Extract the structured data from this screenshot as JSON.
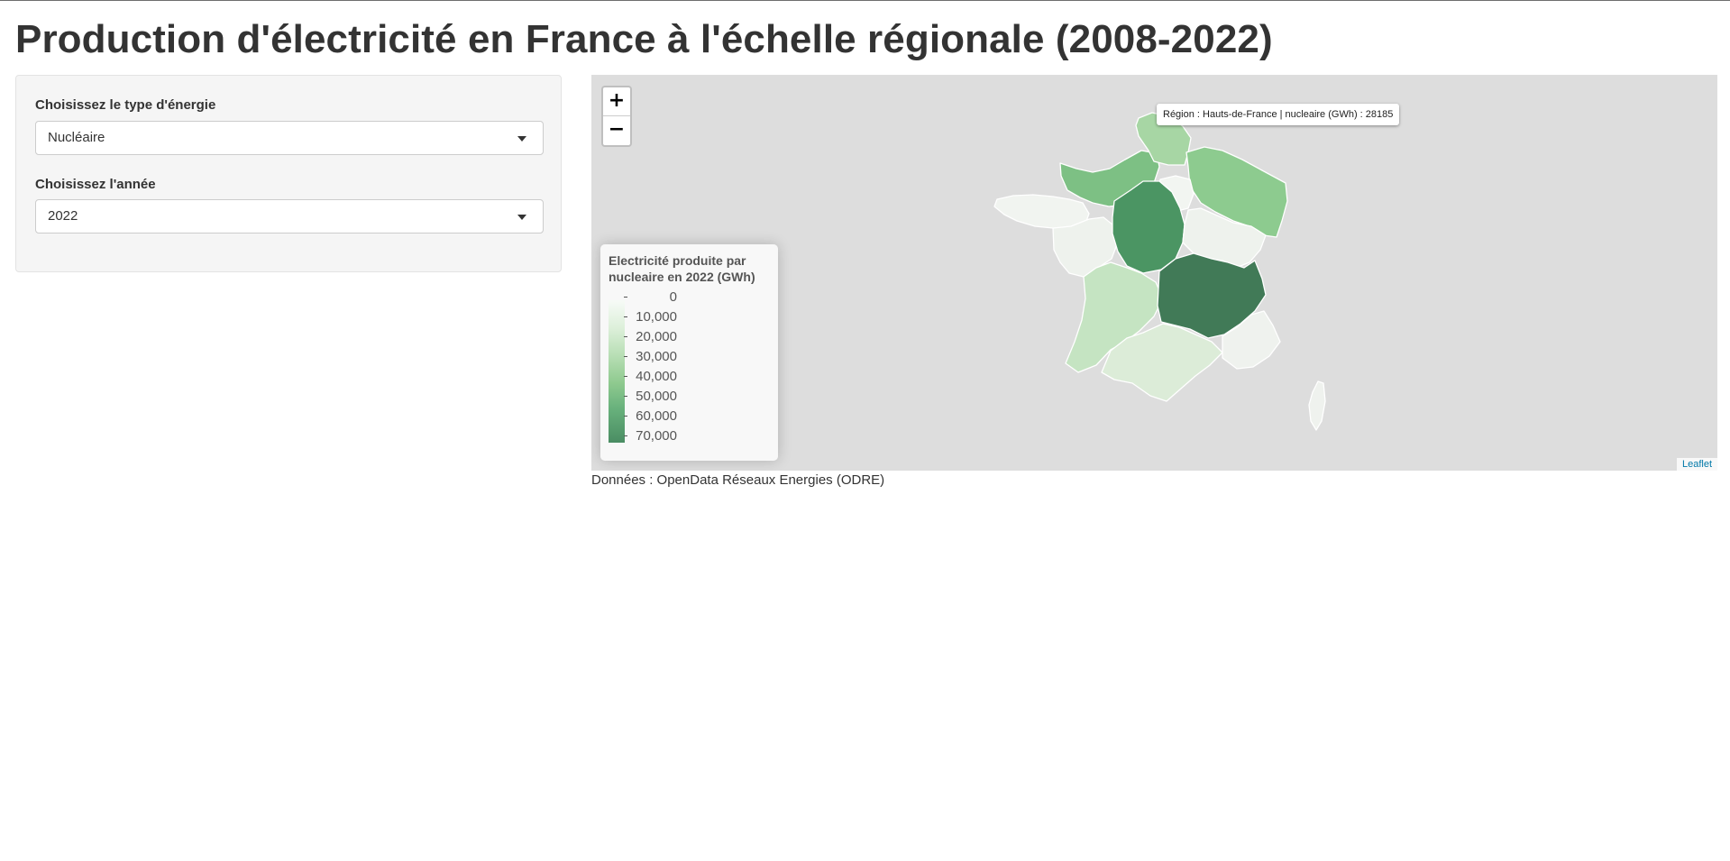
{
  "page": {
    "title": "Production d'électricité en France à l'échelle régionale (2008-2022)"
  },
  "sidebar": {
    "energy_label": "Choisissez le type d'énergie",
    "energy_value": "Nucléaire",
    "year_label": "Choisissez l'année",
    "year_value": "2022"
  },
  "map": {
    "zoom_in": "+",
    "zoom_out": "−",
    "tooltip": "Région : Hauts-de-France | nucleaire (GWh) : 28185",
    "attribution": "Leaflet",
    "legend": {
      "title": "Electricité produite par nucleaire en 2022 (GWh)",
      "labels": [
        "0",
        "10,000",
        "20,000",
        "30,000",
        "40,000",
        "50,000",
        "60,000",
        "70,000"
      ],
      "colors": {
        "low": "#f7fbf7",
        "high": "#3f7555"
      }
    },
    "regions": [
      {
        "name": "Bretagne",
        "color": "#f1f4f0"
      },
      {
        "name": "Normandie",
        "color": "#7dc084"
      },
      {
        "name": "Hauts-de-France",
        "color": "#a7d6a4"
      },
      {
        "name": "Grand Est",
        "color": "#8dcb8f"
      },
      {
        "name": "Île-de-France",
        "color": "#f2f5f1"
      },
      {
        "name": "Pays de la Loire",
        "color": "#eef2ed"
      },
      {
        "name": "Centre-Val de Loire",
        "color": "#4b9563"
      },
      {
        "name": "Bourgogne-Franche-Comté",
        "color": "#eef2ed"
      },
      {
        "name": "Nouvelle-Aquitaine",
        "color": "#c5e4c2"
      },
      {
        "name": "Auvergne-Rhône-Alpes",
        "color": "#417a57"
      },
      {
        "name": "Occitanie",
        "color": "#dcecd8"
      },
      {
        "name": "Provence-Alpes-Côte d'Azur",
        "color": "#eff2ee"
      },
      {
        "name": "Corse",
        "color": "#eff2ee"
      }
    ]
  },
  "source_note": "Données : OpenData Réseaux Energies (ODRE)"
}
